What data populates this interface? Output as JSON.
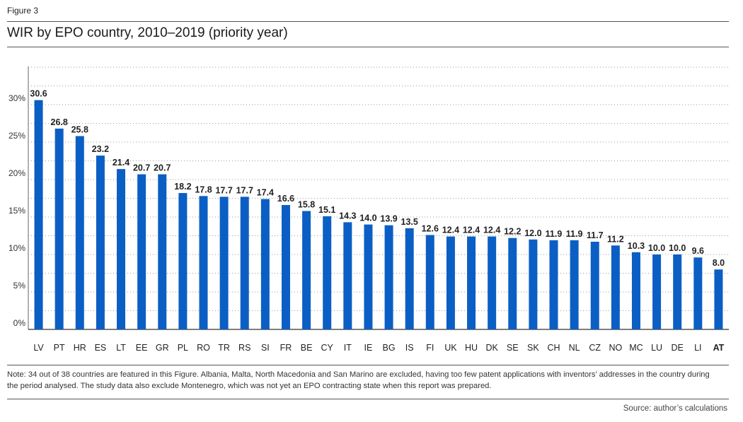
{
  "figure_label": "Figure 3",
  "chart_data": {
    "type": "bar",
    "title": "WIR by EPO country, 2010–2019 (priority year)",
    "xlabel": "",
    "ylabel": "",
    "ylim": [
      0,
      35
    ],
    "y_ticks": [
      {
        "value": 0,
        "label": "0%"
      },
      {
        "value": 5,
        "label": "5%"
      },
      {
        "value": 10,
        "label": "10%"
      },
      {
        "value": 15,
        "label": "15%"
      },
      {
        "value": 20,
        "label": "20%"
      },
      {
        "value": 25,
        "label": "25%"
      },
      {
        "value": 30,
        "label": "30%"
      }
    ],
    "grid": "horizontal dotted",
    "bar_color": "#0b5fc4",
    "categories": [
      "LV",
      "PT",
      "HR",
      "ES",
      "LT",
      "EE",
      "GR",
      "PL",
      "RO",
      "TR",
      "RS",
      "SI",
      "FR",
      "BE",
      "CY",
      "IT",
      "IE",
      "BG",
      "IS",
      "FI",
      "UK",
      "HU",
      "DK",
      "SE",
      "SK",
      "CH",
      "NL",
      "CZ",
      "NO",
      "MC",
      "LU",
      "DE",
      "LI",
      "AT"
    ],
    "values": [
      30.6,
      26.8,
      25.8,
      23.2,
      21.4,
      20.7,
      20.7,
      18.2,
      17.8,
      17.7,
      17.7,
      17.4,
      16.6,
      15.8,
      15.1,
      14.3,
      14.0,
      13.9,
      13.5,
      12.6,
      12.4,
      12.4,
      12.4,
      12.2,
      12.0,
      11.9,
      11.9,
      11.7,
      11.2,
      10.3,
      10.0,
      10.0,
      9.6,
      8.0
    ],
    "data_labels": [
      "30.6",
      "26.8",
      "25.8",
      "23.2",
      "21.4",
      "20.7",
      "20.7",
      "18.2",
      "17.8",
      "17.7",
      "17.7",
      "17.4",
      "16.6",
      "15.8",
      "15.1",
      "14.3",
      "14.0",
      "13.9",
      "13.5",
      "12.6",
      "12.4",
      "12.4",
      "12.4",
      "12.2",
      "12.0",
      "11.9",
      "11.9",
      "11.7",
      "11.2",
      "10.3",
      "10.0",
      "10.0",
      "9.6",
      "8.0"
    ],
    "highlighted_category": "AT"
  },
  "note": "Note: 34 out of 38 countries are featured in this Figure. Albania, Malta, North Macedonia and San Marino are excluded, having too few patent applications with inventors’ addresses in the country during the period analysed. The study data also exclude Montenegro, which was not yet an EPO contracting state when this report was prepared.",
  "source": "Source: author’s calculations"
}
